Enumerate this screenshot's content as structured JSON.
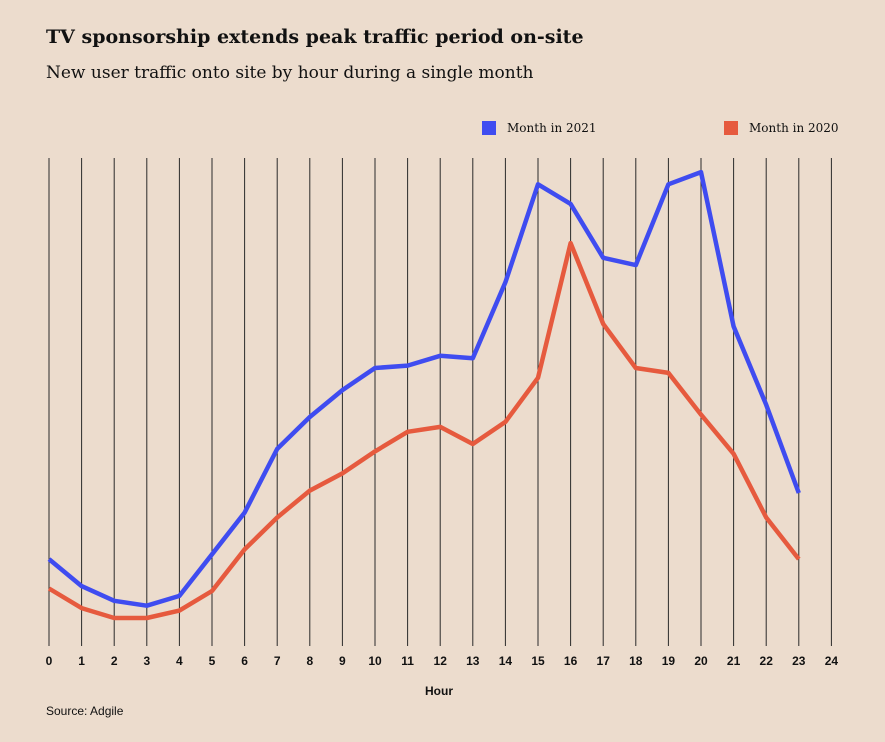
{
  "chart_data": {
    "type": "line",
    "title": "TV sponsorship extends peak traffic period on-site",
    "subtitle": "New user traffic onto site by hour during a single month",
    "xlabel": "Hour",
    "ylabel": "",
    "x": [
      0,
      1,
      2,
      3,
      4,
      5,
      6,
      7,
      8,
      9,
      10,
      11,
      12,
      13,
      14,
      15,
      16,
      17,
      18,
      19,
      20,
      21,
      22,
      23
    ],
    "xticks": [
      "0",
      "1",
      "2",
      "3",
      "4",
      "5",
      "6",
      "7",
      "8",
      "9",
      "10",
      "11",
      "12",
      "13",
      "14",
      "15",
      "16",
      "17",
      "18",
      "19",
      "20",
      "21",
      "22",
      "23",
      "24"
    ],
    "xlim": [
      0,
      24
    ],
    "ylim": [
      0,
      100
    ],
    "grid": "vertical",
    "series": [
      {
        "name": "Month in 2021",
        "color": "#3f4cf0",
        "values": [
          16.5,
          11,
          8,
          7,
          9,
          17.5,
          26,
          39,
          45.5,
          51,
          55.5,
          56,
          58,
          57.5,
          73,
          93,
          89,
          78,
          76.5,
          93,
          95.5,
          64,
          48,
          30
        ]
      },
      {
        "name": "Month in 2020",
        "color": "#e65a3e",
        "values": [
          10.5,
          6.5,
          4.5,
          4.5,
          6,
          10,
          18.5,
          25,
          30.5,
          34,
          38.5,
          42.5,
          43.5,
          40,
          44.5,
          53.5,
          81,
          64.5,
          55.5,
          54.5,
          46,
          38,
          25,
          16.5
        ]
      }
    ],
    "legend_position": "top-right",
    "source": "Source: Adgile"
  }
}
